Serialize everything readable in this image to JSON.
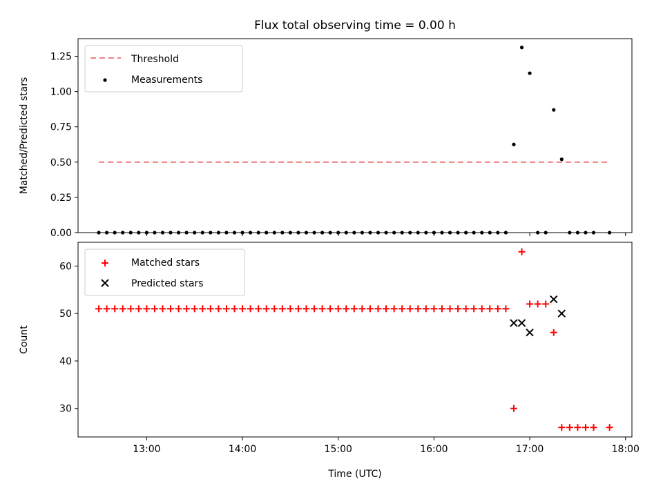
{
  "title": "Flux total observing time = 0.00 h",
  "chart_data": [
    {
      "type": "scatter",
      "ylabel": "Matched/Predicted stars",
      "ylim": [
        0,
        1.375
      ],
      "yticks": [
        0.0,
        0.25,
        0.5,
        0.75,
        1.0,
        1.25
      ],
      "ytick_labels": [
        "0.00",
        "0.25",
        "0.50",
        "0.75",
        "1.00",
        "1.25"
      ],
      "x_shared": true,
      "legend_position": "upper-left",
      "threshold": {
        "name": "Threshold",
        "value": 0.5,
        "x_range": [
          "12:30",
          "17:50"
        ],
        "style": "dashed",
        "color": "#f08080"
      },
      "series": [
        {
          "name": "Measurements",
          "marker": "dot",
          "color": "#000000",
          "points": [
            [
              "12:30",
              0
            ],
            [
              "12:35",
              0
            ],
            [
              "12:40",
              0
            ],
            [
              "12:45",
              0
            ],
            [
              "12:50",
              0
            ],
            [
              "12:55",
              0
            ],
            [
              "13:00",
              0
            ],
            [
              "13:05",
              0
            ],
            [
              "13:10",
              0
            ],
            [
              "13:15",
              0
            ],
            [
              "13:20",
              0
            ],
            [
              "13:25",
              0
            ],
            [
              "13:30",
              0
            ],
            [
              "13:35",
              0
            ],
            [
              "13:40",
              0
            ],
            [
              "13:45",
              0
            ],
            [
              "13:50",
              0
            ],
            [
              "13:55",
              0
            ],
            [
              "14:00",
              0
            ],
            [
              "14:05",
              0
            ],
            [
              "14:10",
              0
            ],
            [
              "14:15",
              0
            ],
            [
              "14:20",
              0
            ],
            [
              "14:25",
              0
            ],
            [
              "14:30",
              0
            ],
            [
              "14:35",
              0
            ],
            [
              "14:40",
              0
            ],
            [
              "14:45",
              0
            ],
            [
              "14:50",
              0
            ],
            [
              "14:55",
              0
            ],
            [
              "15:00",
              0
            ],
            [
              "15:05",
              0
            ],
            [
              "15:10",
              0
            ],
            [
              "15:15",
              0
            ],
            [
              "15:20",
              0
            ],
            [
              "15:25",
              0
            ],
            [
              "15:30",
              0
            ],
            [
              "15:35",
              0
            ],
            [
              "15:40",
              0
            ],
            [
              "15:45",
              0
            ],
            [
              "15:50",
              0
            ],
            [
              "15:55",
              0
            ],
            [
              "16:00",
              0
            ],
            [
              "16:05",
              0
            ],
            [
              "16:10",
              0
            ],
            [
              "16:15",
              0
            ],
            [
              "16:20",
              0
            ],
            [
              "16:25",
              0
            ],
            [
              "16:30",
              0
            ],
            [
              "16:35",
              0
            ],
            [
              "16:40",
              0
            ],
            [
              "16:45",
              0
            ],
            [
              "16:50",
              0.625
            ],
            [
              "16:55",
              1.3125
            ],
            [
              "17:00",
              1.13
            ],
            [
              "17:05",
              0
            ],
            [
              "17:10",
              0
            ],
            [
              "17:15",
              0.87
            ],
            [
              "17:20",
              0.52
            ],
            [
              "17:25",
              0
            ],
            [
              "17:30",
              0
            ],
            [
              "17:35",
              0
            ],
            [
              "17:40",
              0
            ],
            [
              "17:50",
              0
            ]
          ]
        }
      ]
    },
    {
      "type": "scatter",
      "xlabel": "Time (UTC)",
      "ylabel": "Count",
      "xlim": [
        "12:17",
        "18:04"
      ],
      "xticks": [
        "13:00",
        "14:00",
        "15:00",
        "16:00",
        "17:00",
        "18:00"
      ],
      "ylim": [
        24,
        65
      ],
      "yticks": [
        30,
        40,
        50,
        60
      ],
      "ytick_labels": [
        "30",
        "40",
        "50",
        "60"
      ],
      "legend_position": "upper-left",
      "series": [
        {
          "name": "Matched stars",
          "marker": "plus",
          "color": "#ff0000",
          "points": [
            [
              "12:30",
              51
            ],
            [
              "12:35",
              51
            ],
            [
              "12:40",
              51
            ],
            [
              "12:45",
              51
            ],
            [
              "12:50",
              51
            ],
            [
              "12:55",
              51
            ],
            [
              "13:00",
              51
            ],
            [
              "13:05",
              51
            ],
            [
              "13:10",
              51
            ],
            [
              "13:15",
              51
            ],
            [
              "13:20",
              51
            ],
            [
              "13:25",
              51
            ],
            [
              "13:30",
              51
            ],
            [
              "13:35",
              51
            ],
            [
              "13:40",
              51
            ],
            [
              "13:45",
              51
            ],
            [
              "13:50",
              51
            ],
            [
              "13:55",
              51
            ],
            [
              "14:00",
              51
            ],
            [
              "14:05",
              51
            ],
            [
              "14:10",
              51
            ],
            [
              "14:15",
              51
            ],
            [
              "14:20",
              51
            ],
            [
              "14:25",
              51
            ],
            [
              "14:30",
              51
            ],
            [
              "14:35",
              51
            ],
            [
              "14:40",
              51
            ],
            [
              "14:45",
              51
            ],
            [
              "14:50",
              51
            ],
            [
              "14:55",
              51
            ],
            [
              "15:00",
              51
            ],
            [
              "15:05",
              51
            ],
            [
              "15:10",
              51
            ],
            [
              "15:15",
              51
            ],
            [
              "15:20",
              51
            ],
            [
              "15:25",
              51
            ],
            [
              "15:30",
              51
            ],
            [
              "15:35",
              51
            ],
            [
              "15:40",
              51
            ],
            [
              "15:45",
              51
            ],
            [
              "15:50",
              51
            ],
            [
              "15:55",
              51
            ],
            [
              "16:00",
              51
            ],
            [
              "16:05",
              51
            ],
            [
              "16:10",
              51
            ],
            [
              "16:15",
              51
            ],
            [
              "16:20",
              51
            ],
            [
              "16:25",
              51
            ],
            [
              "16:30",
              51
            ],
            [
              "16:35",
              51
            ],
            [
              "16:40",
              51
            ],
            [
              "16:45",
              51
            ],
            [
              "16:50",
              30
            ],
            [
              "16:55",
              63
            ],
            [
              "17:00",
              52
            ],
            [
              "17:05",
              52
            ],
            [
              "17:10",
              52
            ],
            [
              "17:15",
              46
            ],
            [
              "17:20",
              26
            ],
            [
              "17:25",
              26
            ],
            [
              "17:30",
              26
            ],
            [
              "17:35",
              26
            ],
            [
              "17:40",
              26
            ],
            [
              "17:50",
              26
            ]
          ]
        },
        {
          "name": "Predicted stars",
          "marker": "x",
          "color": "#000000",
          "points": [
            [
              "16:50",
              48
            ],
            [
              "16:55",
              48
            ],
            [
              "17:00",
              46
            ],
            [
              "17:15",
              53
            ],
            [
              "17:20",
              50
            ]
          ]
        }
      ]
    }
  ]
}
